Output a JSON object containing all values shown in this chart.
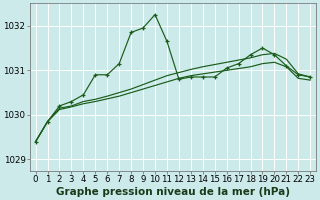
{
  "xlabel": "Graphe pression niveau de la mer (hPa)",
  "bg_color": "#cceaea",
  "plot_bg_color": "#cceaea",
  "grid_color": "#ffffff",
  "line_color": "#1a5c1a",
  "ylim": [
    1028.75,
    1032.5
  ],
  "yticks": [
    1029,
    1030,
    1031,
    1032
  ],
  "xticks": [
    0,
    1,
    2,
    3,
    4,
    5,
    6,
    7,
    8,
    9,
    10,
    11,
    12,
    13,
    14,
    15,
    16,
    17,
    18,
    19,
    20,
    21,
    22,
    23
  ],
  "xlabel_fontsize": 7.5,
  "tick_fontsize": 6.2,
  "series_spiky": [
    1029.4,
    1029.85,
    1030.2,
    1030.3,
    1030.45,
    1030.9,
    1030.9,
    1031.15,
    1031.85,
    1031.95,
    1032.25,
    1031.65,
    1030.8,
    1030.85,
    1030.85,
    1030.85,
    1031.05,
    1031.15,
    1031.35,
    1031.5,
    1031.35,
    1031.1,
    1030.9,
    1030.85
  ],
  "series_mid": [
    1029.4,
    1029.85,
    1030.15,
    1030.2,
    1030.3,
    1030.35,
    1030.42,
    1030.5,
    1030.58,
    1030.68,
    1030.78,
    1030.88,
    1030.95,
    1031.02,
    1031.08,
    1031.13,
    1031.18,
    1031.23,
    1031.28,
    1031.35,
    1031.38,
    1031.25,
    1030.92,
    1030.85
  ],
  "series_low": [
    1029.4,
    1029.85,
    1030.12,
    1030.18,
    1030.25,
    1030.3,
    1030.36,
    1030.42,
    1030.5,
    1030.58,
    1030.66,
    1030.74,
    1030.82,
    1030.88,
    1030.92,
    1030.96,
    1031.0,
    1031.04,
    1031.08,
    1031.15,
    1031.18,
    1031.08,
    1030.82,
    1030.78
  ]
}
